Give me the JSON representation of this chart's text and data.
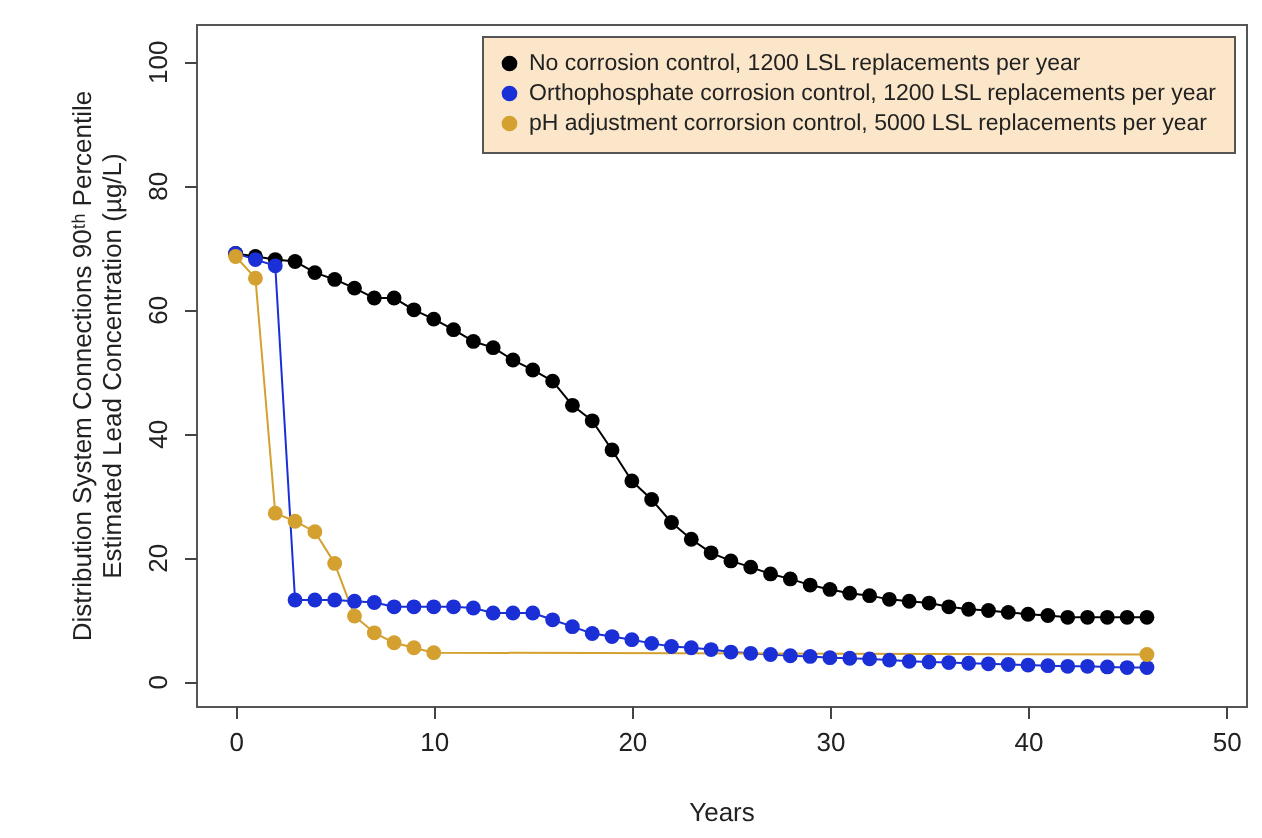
{
  "chart_data": {
    "type": "line",
    "xlabel": "Years",
    "ylabel": "Distribution System Connections 90ᵗʰ Percentile\nEstimated Lead Concentration (µg/L)",
    "x": [
      0,
      1,
      2,
      3,
      4,
      5,
      6,
      7,
      8,
      9,
      10,
      11,
      12,
      13,
      14,
      15,
      16,
      17,
      18,
      19,
      20,
      21,
      22,
      23,
      24,
      25,
      26,
      27,
      28,
      29,
      30,
      31,
      32,
      33,
      34,
      35,
      36,
      37,
      38,
      39,
      40,
      41,
      42,
      43,
      44,
      45,
      46
    ],
    "series": [
      {
        "name": "No corrosion control, 1200 LSL replacements per year",
        "color": "#000000",
        "values": [
          69,
          68.5,
          68,
          67.7,
          65.9,
          64.8,
          63.4,
          61.8,
          61.8,
          59.9,
          58.4,
          56.7,
          54.8,
          53.8,
          51.8,
          50.2,
          48.4,
          44.5,
          42,
          37.3,
          32.3,
          29.3,
          25.6,
          22.9,
          20.7,
          19.4,
          18.4,
          17.3,
          16.5,
          15.5,
          14.8,
          14.2,
          13.8,
          13.2,
          12.9,
          12.6,
          12,
          11.6,
          11.4,
          11.1,
          10.8,
          10.6,
          10.3,
          10.3,
          10.3,
          10.3,
          10.3
        ]
      },
      {
        "name": "Orthophosphate corrosion control, 1200 LSL replacements per year",
        "color": "#1a2fd6",
        "values": [
          69,
          68,
          67,
          13.1,
          13.1,
          13.1,
          12.9,
          12.7,
          12,
          12,
          12,
          12,
          11.8,
          11,
          11,
          11,
          9.9,
          8.8,
          7.7,
          7.2,
          6.7,
          6.1,
          5.6,
          5.4,
          5.1,
          4.7,
          4.5,
          4.3,
          4.1,
          4,
          3.8,
          3.7,
          3.6,
          3.4,
          3.2,
          3.1,
          3,
          2.9,
          2.8,
          2.7,
          2.6,
          2.5,
          2.4,
          2.4,
          2.3,
          2.2,
          2.2
        ]
      },
      {
        "name": "pH adjustment corrorsion control, 5000 LSL replacements per year",
        "color": "#d4a030",
        "x": [
          0,
          1,
          2,
          3,
          4,
          5,
          6,
          7,
          8,
          9,
          10,
          46
        ],
        "values": [
          68.5,
          65,
          27.1,
          25.8,
          24.1,
          19,
          10.5,
          7.8,
          6.2,
          5.4,
          4.6,
          4.3
        ]
      }
    ],
    "xlim": [
      -2,
      51
    ],
    "xticks": [
      0,
      10,
      20,
      30,
      40,
      50
    ],
    "ylim": [
      -4,
      106
    ],
    "yticks": [
      0,
      20,
      40,
      60,
      80,
      100
    ],
    "legend": "top right",
    "marker": "circle"
  }
}
